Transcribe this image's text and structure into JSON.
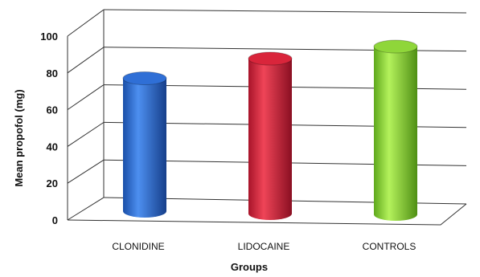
{
  "chart_data": {
    "type": "bar",
    "style": "3d-cylinder",
    "categories": [
      "CLONIDINE",
      "LIDOCAINE",
      "CONTROLS"
    ],
    "values": [
      74,
      86,
      93
    ],
    "xlabel": "Groups",
    "ylabel": "Mean propofol (mg)",
    "ylim": [
      0,
      100
    ],
    "yticks": [
      0,
      20,
      40,
      60,
      80,
      100
    ],
    "grid": true,
    "legend": "none",
    "colors": [
      "#2f6fd6",
      "#d9253b",
      "#8fd63a"
    ]
  }
}
